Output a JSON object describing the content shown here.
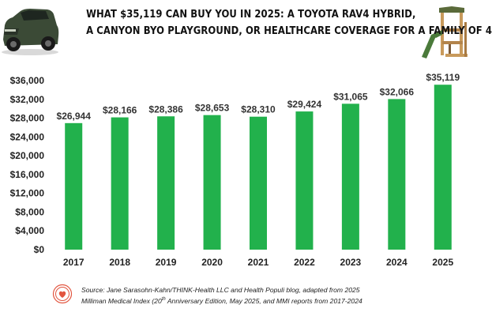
{
  "header": {
    "title_line1": "WHAT $35,119 CAN BUY YOU IN 2025: A TOYOTA RAV4 HYBRID,",
    "title_line2": "A CANYON BYO PLAYGROUND, OR HEALTHCARE COVERAGE FOR A FAMILY OF 4"
  },
  "images": {
    "car": "car-icon",
    "playground": "playground-icon",
    "logo": "heart-logo-icon"
  },
  "colors": {
    "bar": "#22b14c",
    "bar_label": "#333333",
    "axis_text": "#222222",
    "logo": "#e2553f"
  },
  "chart_data": {
    "type": "bar",
    "title": "WHAT $35,119 CAN BUY YOU IN 2025: A TOYOTA RAV4 HYBRID, A CANYON BYO PLAYGROUND, OR HEALTHCARE COVERAGE FOR A FAMILY OF 4",
    "categories": [
      "2017",
      "2018",
      "2019",
      "2020",
      "2021",
      "2022",
      "2023",
      "2024",
      "2025"
    ],
    "values": [
      26944,
      28166,
      28386,
      28653,
      28310,
      29424,
      31065,
      32066,
      35119
    ],
    "value_labels": [
      "$26,944",
      "$28,166",
      "$28,386",
      "$28,653",
      "$28,310",
      "$29,424",
      "$31,065",
      "$32,066",
      "$35,119"
    ],
    "y_ticks": [
      0,
      4000,
      8000,
      12000,
      16000,
      20000,
      24000,
      28000,
      32000,
      36000
    ],
    "y_tick_labels": [
      "$0",
      "$4,000",
      "$8,000",
      "$12,000",
      "$16,000",
      "$20,000",
      "$24,000",
      "$28,000",
      "$32,000",
      "$36,000"
    ],
    "ylim": [
      0,
      36000
    ],
    "grid": false,
    "legend": "none",
    "xlabel": "",
    "ylabel": ""
  },
  "source": {
    "line1": "Source: Jane Sarasohn-Kahn/THINK-Health LLC and Health Populi blog, adapted from 2025",
    "line2_pre": "Milliman Medical Index (20",
    "line2_sup": "th",
    "line2_post": " Anniversary Edition, May 2025, and MMI reports from 2017-2024"
  }
}
